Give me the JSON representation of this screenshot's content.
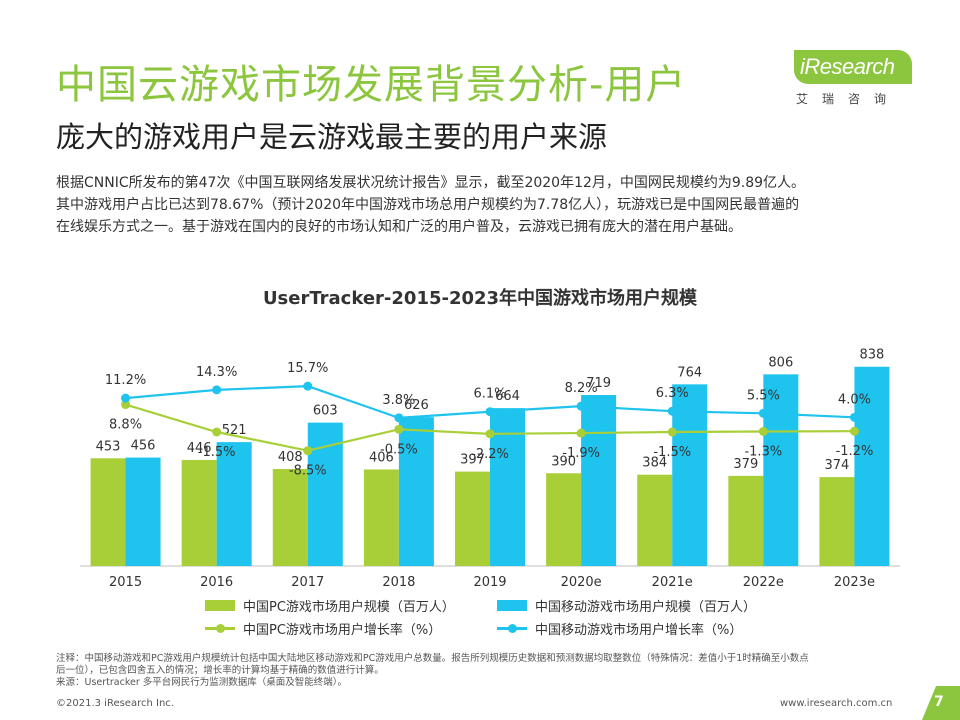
{
  "header": {
    "title": "中国云游戏市场发展背景分析-用户",
    "subtitle": "庞大的游戏用户是云游戏最主要的用户来源"
  },
  "logo": {
    "text": "iResearch",
    "cn": "艾瑞咨询"
  },
  "intro": [
    "根据CNNIC所发布的第47次《中国互联网络发展状况统计报告》显示，截至2020年12月，中国网民规模约为9.89亿人。",
    "其中游戏用户占比已达到78.67%（预计2020年中国游戏市场总用户规模约为7.78亿人），玩游戏已是中国网民最普遍的",
    "在线娱乐方式之一。基于游戏在国内的良好的市场认知和广泛的用户普及，云游戏已拥有庞大的潜在用户基础。"
  ],
  "chart_data": {
    "type": "bar",
    "title": "UserTracker-2015-2023年中国游戏市场用户规模",
    "categories": [
      "2015",
      "2016",
      "2017",
      "2018",
      "2019",
      "2020e",
      "2021e",
      "2022e",
      "2023e"
    ],
    "series": [
      {
        "name": "中国PC游戏市场用户规模（百万人）",
        "kind": "bar",
        "color": "#a8cf38",
        "values": [
          453,
          446,
          408,
          406,
          397,
          390,
          384,
          379,
          374
        ]
      },
      {
        "name": "中国移动游戏市场用户规模（百万人）",
        "kind": "bar",
        "color": "#1ec3ee",
        "values": [
          456,
          521,
          603,
          626,
          664,
          719,
          764,
          806,
          838
        ]
      },
      {
        "name": "中国PC游戏市场用户增长率（%）",
        "kind": "line",
        "color": "#a8cf38",
        "values": [
          8.8,
          -1.5,
          -8.5,
          -0.5,
          -2.2,
          -1.9,
          -1.5,
          -1.3,
          -1.2
        ]
      },
      {
        "name": "中国移动游戏市场用户增长率（%）",
        "kind": "line",
        "color": "#1ec3ee",
        "values": [
          11.2,
          14.3,
          15.7,
          3.8,
          6.1,
          8.2,
          6.3,
          5.5,
          4.0
        ]
      }
    ],
    "bar_labels_pc": [
      "453",
      "446",
      "408",
      "406",
      "397",
      "390",
      "384",
      "379",
      "374"
    ],
    "bar_labels_mobile": [
      "456",
      "521",
      "603",
      "626",
      "664",
      "719",
      "764",
      "806",
      "838"
    ],
    "line_labels_pc": [
      "8.8%",
      "-1.5%",
      "-8.5%",
      "-0.5%",
      "-2.2%",
      "-1.9%",
      "-1.5%",
      "-1.3%",
      "-1.2%"
    ],
    "line_labels_mobile": [
      "11.2%",
      "14.3%",
      "15.7%",
      "3.8%",
      "6.1%",
      "8.2%",
      "6.3%",
      "5.5%",
      "4.0%"
    ],
    "ylim_bars": [
      0,
      900
    ],
    "ylim_lines": [
      -12,
      18
    ],
    "grid": false,
    "legend_position": "bottom"
  },
  "notes": [
    "注释：中国移动游戏和PC游戏用户规模统计包括中国大陆地区移动游戏和PC游戏用户总数量。报告所列规模历史数据和预测数据均取整数位（特殊情况：差值小于1时精确至小数点",
    "后一位），已包含四舍五入的情况；增长率的计算均基于精确的数值进行计算。",
    "来源：Usertracker 多平台网民行为监测数据库（桌面及智能终端）。"
  ],
  "footer": {
    "copyright": "©2021.3 iResearch Inc.",
    "site": "www.iresearch.com.cn",
    "page": "7"
  },
  "colors": {
    "brand_green": "#8cc63e",
    "pc_green": "#a8cf38",
    "mobile_blue": "#1ec3ee"
  }
}
